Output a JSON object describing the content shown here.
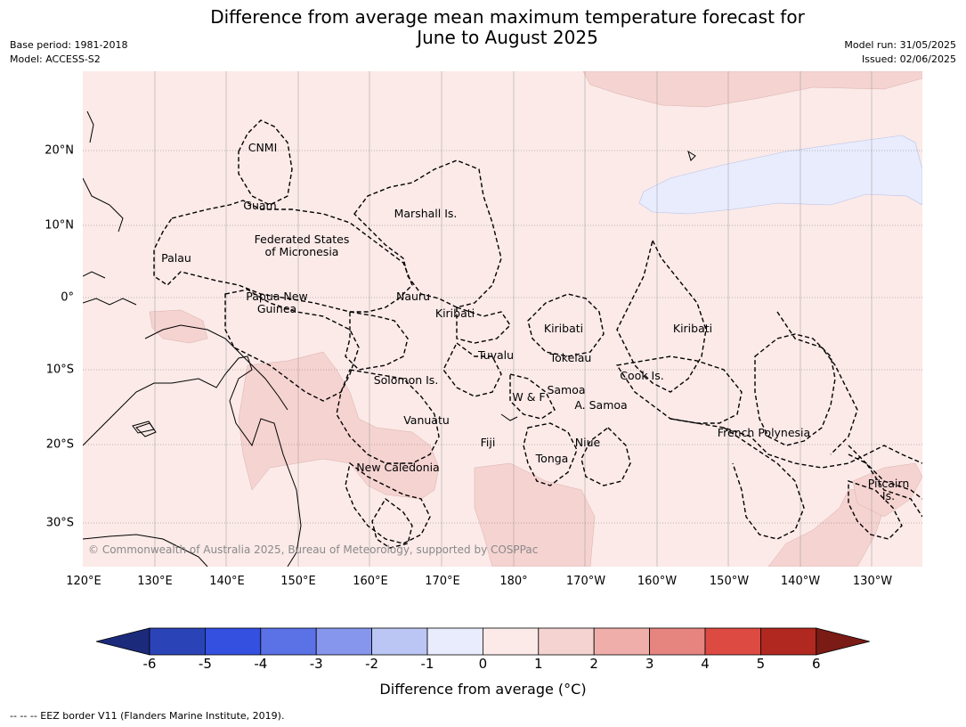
{
  "title": "Difference from average mean maximum temperature forecast for\nJune to August 2025",
  "meta_left": [
    "Base period: 1981-2018",
    "Model: ACCESS-S2"
  ],
  "meta_right": [
    "Model run: 31/05/2025",
    "Issued: 02/06/2025"
  ],
  "lat_labels": [
    "20°N",
    "10°N",
    "0°",
    "10°S",
    "20°S",
    "30°S"
  ],
  "lon_labels": [
    "120°E",
    "130°E",
    "140°E",
    "150°E",
    "160°E",
    "170°E",
    "180°",
    "170°W",
    "160°W",
    "150°W",
    "140°W",
    "130°W"
  ],
  "region_labels": [
    "CNMI",
    "Guam",
    "Marshall Is.",
    "Federated States\nof Micronesia",
    "Palau",
    "Papua New\nGuinea",
    "Nauru",
    "Kiribati",
    "Kiribati",
    "Kiribati",
    "Tuvalu",
    "Tokelau",
    "Solomon Is.",
    "W & F",
    "Samoa",
    "A. Samoa",
    "Cook Is.",
    "Vanuatu",
    "Fiji",
    "Niue",
    "Tonga",
    "French Polynesia",
    "New Caledonia",
    "Pitcairn\nIs."
  ],
  "credit": "© Commonwealth of Australia 2025, Bureau of Meteorology, supported by COSPPac",
  "colorbar": {
    "ticks": [
      "-6",
      "-5",
      "-4",
      "-3",
      "-2",
      "-1",
      "0",
      "1",
      "2",
      "3",
      "4",
      "5",
      "6"
    ],
    "colors": [
      "#1b2a7a",
      "#2a44b8",
      "#3350e0",
      "#5a72e6",
      "#8596ec",
      "#bcc6f4",
      "#e8ecfc",
      "#fbeae8",
      "#f5d3d1",
      "#efaeaa",
      "#e68480",
      "#dc4a42",
      "#b0281f",
      "#7a1b16"
    ],
    "label": "Difference from average (°C)"
  },
  "footnote": "--  --  -- EEZ border V11 (Flanders Marine Institute, 2019)."
}
